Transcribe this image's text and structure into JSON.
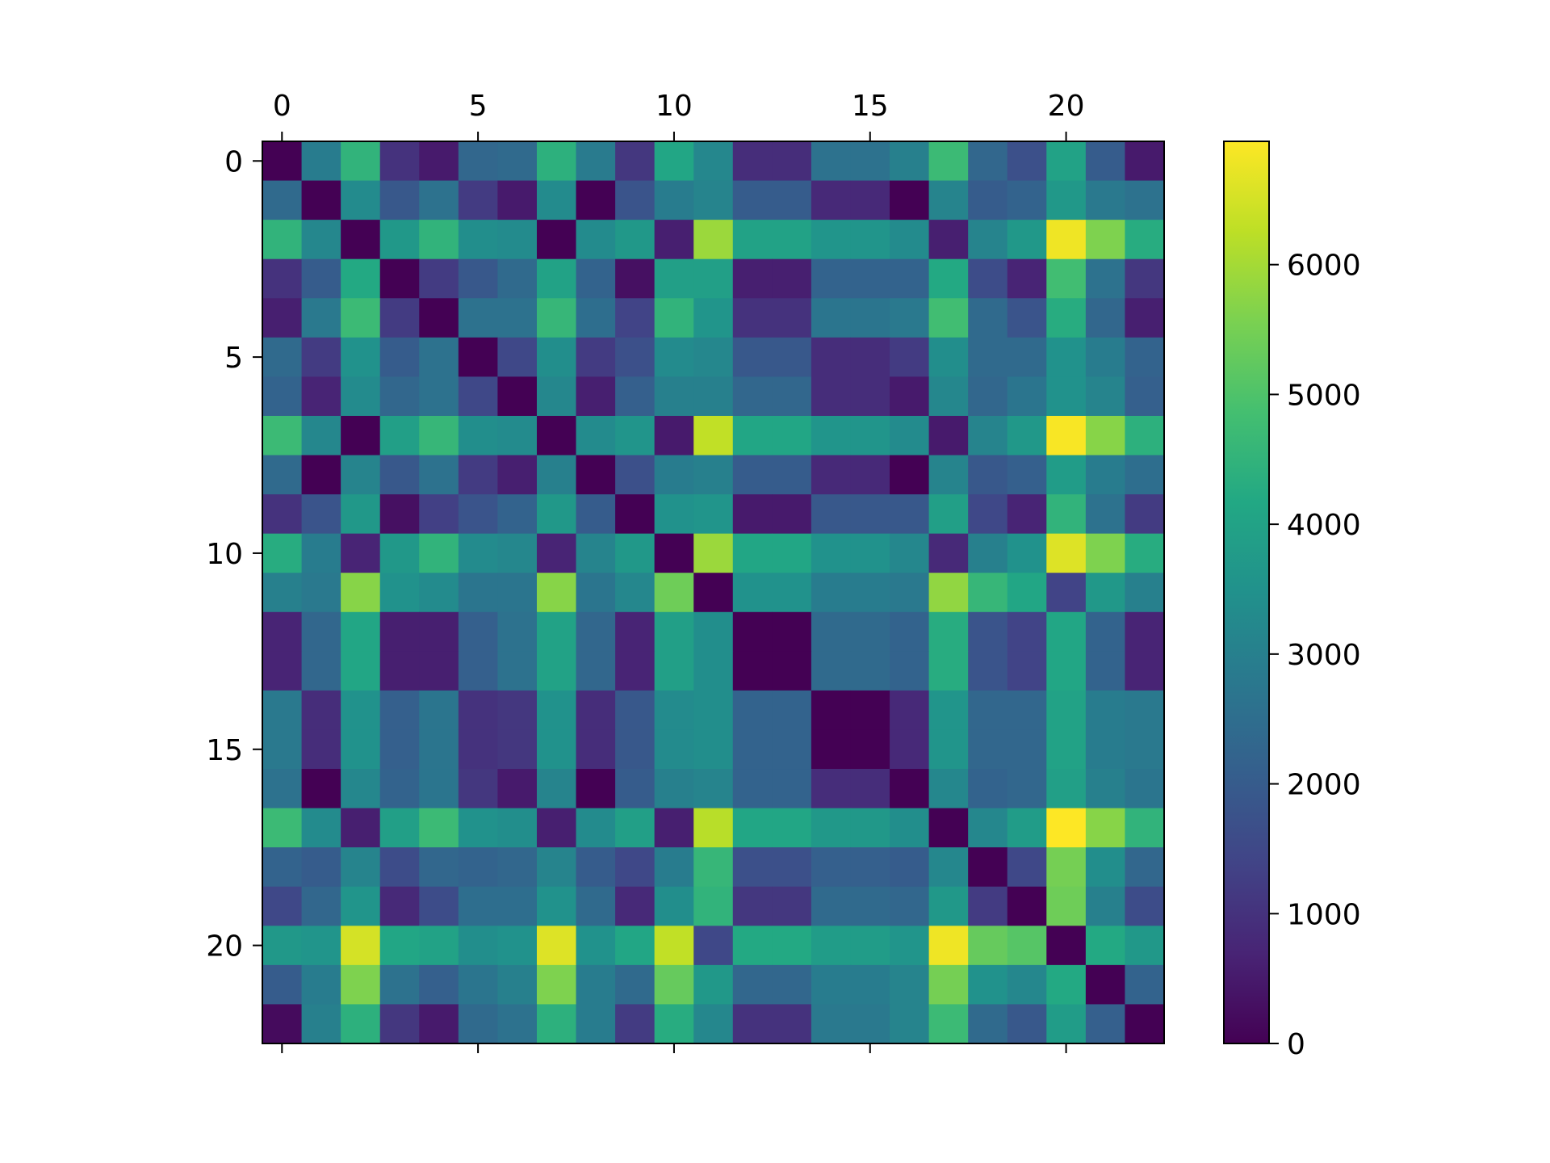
{
  "chart_data": {
    "type": "heatmap",
    "title": "",
    "xlabel": "",
    "ylabel": "",
    "x_ticks": [
      "0",
      "5",
      "10",
      "15",
      "20"
    ],
    "y_ticks": [
      "0",
      "5",
      "10",
      "15",
      "20"
    ],
    "colorbar": {
      "colormap": "viridis",
      "vmin": 0,
      "vmax": 6950,
      "ticks": [
        "0",
        "1000",
        "2000",
        "3000",
        "4000",
        "5000",
        "6000"
      ]
    },
    "rows": 23,
    "cols": 23,
    "matrix": [
      [
        0,
        2900,
        4500,
        1000,
        500,
        2300,
        2400,
        4400,
        2850,
        1100,
        4100,
        3200,
        900,
        900,
        2600,
        2600,
        3000,
        4700,
        2300,
        1700,
        4000,
        2000,
        500
      ],
      [
        2400,
        0,
        3300,
        1900,
        2600,
        1200,
        500,
        3300,
        0,
        1800,
        2900,
        3100,
        2000,
        2000,
        800,
        800,
        0,
        3100,
        2000,
        2200,
        3700,
        2800,
        2600
      ],
      [
        4500,
        3200,
        0,
        3700,
        4500,
        3400,
        3300,
        0,
        3300,
        3700,
        600,
        5900,
        4000,
        4000,
        3600,
        3600,
        3300,
        600,
        3100,
        3700,
        6800,
        5600,
        4300
      ],
      [
        1000,
        2000,
        4200,
        0,
        1200,
        1900,
        2400,
        4000,
        2200,
        300,
        3900,
        3900,
        600,
        600,
        2200,
        2200,
        2200,
        4200,
        1600,
        700,
        4800,
        2600,
        1100
      ],
      [
        600,
        2800,
        4700,
        1200,
        0,
        2600,
        2600,
        4600,
        2500,
        1400,
        4500,
        3600,
        1000,
        1000,
        2700,
        2700,
        2800,
        4800,
        2400,
        1800,
        4300,
        2300,
        600
      ],
      [
        2400,
        1200,
        3500,
        2000,
        2600,
        0,
        1500,
        3400,
        1200,
        1700,
        3300,
        3200,
        1900,
        1900,
        900,
        900,
        1200,
        3400,
        2400,
        2400,
        3500,
        2900,
        2200
      ],
      [
        2200,
        700,
        3300,
        2300,
        2600,
        1500,
        0,
        3200,
        600,
        2100,
        3000,
        3000,
        2300,
        2300,
        900,
        900,
        500,
        3200,
        2300,
        2700,
        3500,
        3100,
        2100
      ],
      [
        4700,
        3200,
        0,
        3900,
        4600,
        3400,
        3300,
        0,
        3300,
        3600,
        500,
        6300,
        4100,
        4100,
        3600,
        3600,
        3300,
        500,
        3100,
        3700,
        6900,
        5700,
        4400
      ],
      [
        2400,
        0,
        3100,
        1900,
        2600,
        1200,
        600,
        3000,
        0,
        1700,
        2900,
        3000,
        2000,
        2000,
        800,
        800,
        0,
        3100,
        1900,
        2100,
        3800,
        2900,
        2500
      ],
      [
        1000,
        1800,
        3700,
        300,
        1300,
        1800,
        2200,
        3700,
        2000,
        0,
        3500,
        3600,
        500,
        500,
        1900,
        1900,
        1900,
        3900,
        1500,
        700,
        4500,
        2600,
        1200
      ],
      [
        4300,
        2900,
        700,
        3700,
        4500,
        3300,
        3200,
        700,
        3100,
        3700,
        0,
        5900,
        4100,
        4100,
        3500,
        3500,
        3200,
        800,
        3000,
        3500,
        6600,
        5600,
        4300
      ],
      [
        3000,
        2800,
        5700,
        3500,
        3300,
        2700,
        2700,
        5700,
        2700,
        3200,
        5400,
        0,
        3500,
        3500,
        2900,
        2900,
        2800,
        5800,
        4600,
        4100,
        1400,
        3700,
        3000
      ],
      [
        700,
        2300,
        4100,
        600,
        600,
        2100,
        2600,
        4000,
        2300,
        700,
        3900,
        3400,
        0,
        0,
        2400,
        2400,
        2200,
        4300,
        1800,
        1400,
        4100,
        2200,
        700
      ],
      [
        700,
        2300,
        4100,
        600,
        600,
        2100,
        2600,
        4000,
        2300,
        700,
        3900,
        3400,
        0,
        0,
        2400,
        2400,
        2200,
        4300,
        1800,
        1400,
        4100,
        2200,
        700
      ],
      [
        2800,
        900,
        3500,
        2100,
        2700,
        1000,
        1100,
        3500,
        900,
        1900,
        3300,
        3400,
        2200,
        2200,
        0,
        0,
        800,
        3600,
        2300,
        2300,
        4000,
        2900,
        2800
      ],
      [
        2800,
        900,
        3500,
        2100,
        2700,
        1000,
        1100,
        3500,
        900,
        1900,
        3300,
        3400,
        2200,
        2200,
        0,
        0,
        800,
        3600,
        2300,
        2300,
        4000,
        2900,
        2800
      ],
      [
        2600,
        0,
        3200,
        2200,
        2700,
        1100,
        500,
        3100,
        0,
        2000,
        3000,
        3100,
        2200,
        2200,
        900,
        900,
        0,
        3200,
        2200,
        2300,
        3900,
        3000,
        2700
      ],
      [
        4700,
        3300,
        600,
        3900,
        4700,
        3500,
        3400,
        600,
        3300,
        3900,
        600,
        6200,
        4100,
        4100,
        3700,
        3700,
        3400,
        0,
        3200,
        3800,
        6950,
        5700,
        4500
      ],
      [
        2200,
        2000,
        3100,
        1600,
        2300,
        2200,
        2300,
        3100,
        2000,
        1500,
        2900,
        4600,
        1700,
        1700,
        2100,
        2100,
        2000,
        3200,
        0,
        1500,
        5500,
        3400,
        2300
      ],
      [
        1500,
        2300,
        3600,
        800,
        1600,
        2500,
        2500,
        3500,
        2400,
        800,
        3400,
        4500,
        1100,
        1100,
        2400,
        2400,
        2300,
        3700,
        1200,
        0,
        5400,
        3000,
        1600
      ],
      [
        3700,
        3600,
        6500,
        4100,
        4000,
        3400,
        3500,
        6600,
        3500,
        4100,
        6300,
        1500,
        4200,
        4200,
        3800,
        3800,
        3600,
        6800,
        5300,
        5100,
        0,
        4200,
        3700
      ],
      [
        2000,
        2900,
        5600,
        2600,
        2100,
        2700,
        3000,
        5600,
        2900,
        2400,
        5300,
        3700,
        2300,
        2300,
        2900,
        2900,
        3100,
        5500,
        3500,
        3200,
        4200,
        0,
        2200
      ],
      [
        200,
        3000,
        4400,
        1100,
        500,
        2400,
        2600,
        4400,
        2900,
        1200,
        4300,
        3200,
        1000,
        1000,
        2800,
        2800,
        3100,
        4700,
        2400,
        1900,
        3800,
        2100,
        0
      ]
    ]
  }
}
